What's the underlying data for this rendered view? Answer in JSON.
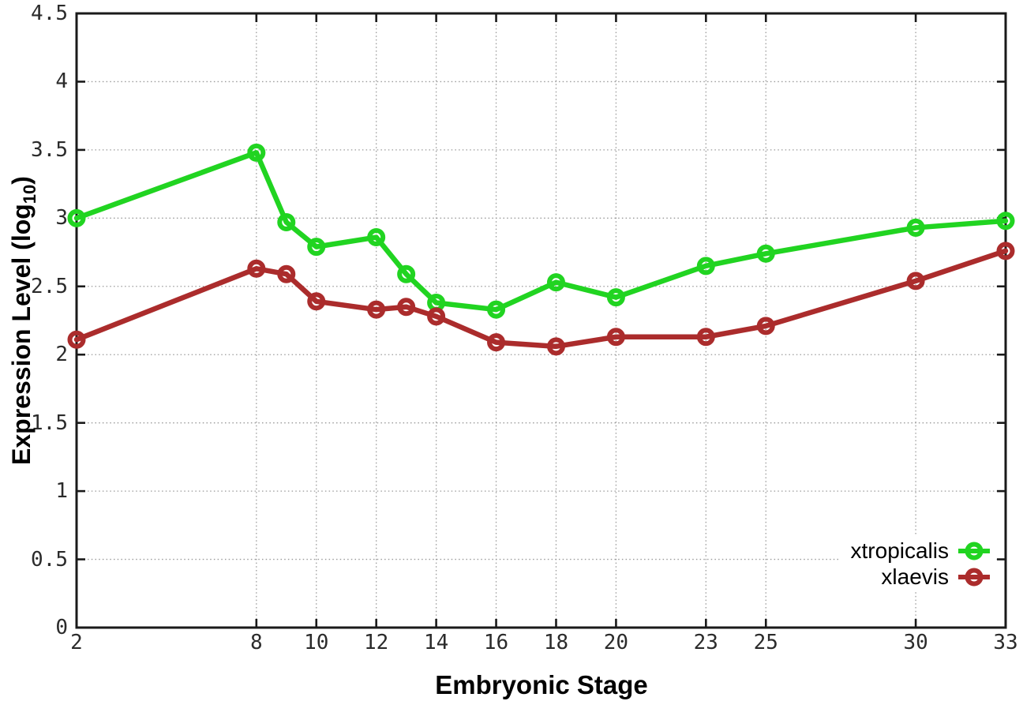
{
  "chart_data": {
    "type": "line",
    "title": "",
    "xlabel": "Embryonic Stage",
    "ylabel": "Expression Level (log10)",
    "ylabel_parts": {
      "main": "Expression Level (log",
      "sub": "10",
      "close": ")"
    },
    "xlim": [
      2,
      33
    ],
    "ylim": [
      0,
      4.5
    ],
    "grid": true,
    "legend_position": "bottom-right",
    "x": [
      2,
      8,
      9,
      10,
      12,
      13,
      14,
      16,
      18,
      20,
      23,
      25,
      30,
      33
    ],
    "xtick_values": [
      2,
      8,
      10,
      12,
      14,
      16,
      18,
      20,
      23,
      25,
      30,
      33
    ],
    "xtick_labels": [
      "2",
      "8",
      "10",
      "12",
      "14",
      "16",
      "18",
      "20",
      "23",
      "25",
      "30",
      "33"
    ],
    "ytick_values": [
      0,
      0.5,
      1,
      1.5,
      2,
      2.5,
      3,
      3.5,
      4,
      4.5
    ],
    "ytick_labels": [
      "0",
      "0.5",
      "1",
      "1.5",
      "2",
      "2.5",
      "3",
      "3.5",
      "4",
      "4.5"
    ],
    "series": [
      {
        "name": "xtropicalis",
        "color": "#21d421",
        "values": [
          3.0,
          3.48,
          2.97,
          2.79,
          2.86,
          2.59,
          2.38,
          2.33,
          2.53,
          2.42,
          2.65,
          2.74,
          2.93,
          2.98
        ]
      },
      {
        "name": "xlaevis",
        "color": "#ab2c2c",
        "values": [
          2.11,
          2.63,
          2.59,
          2.39,
          2.33,
          2.35,
          2.28,
          2.09,
          2.06,
          2.13,
          2.13,
          2.21,
          2.54,
          2.76
        ]
      }
    ],
    "colors": {
      "grid": "#9a9a9a",
      "axis": "#1a1a1a"
    }
  }
}
